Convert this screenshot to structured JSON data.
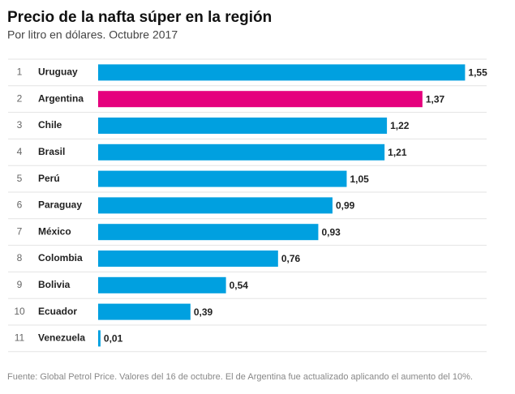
{
  "chart_data": {
    "type": "bar",
    "orientation": "horizontal",
    "title": "Precio de la nafta súper en la región",
    "subtitle": "Por litro en dólares. Octubre 2017",
    "ranks": [
      1,
      2,
      3,
      4,
      5,
      6,
      7,
      8,
      9,
      10,
      11
    ],
    "categories": [
      "Uruguay",
      "Argentina",
      "Chile",
      "Brasil",
      "Perú",
      "Paraguay",
      "México",
      "Colombia",
      "Bolivia",
      "Ecuador",
      "Venezuela"
    ],
    "values": [
      1.55,
      1.37,
      1.22,
      1.21,
      1.05,
      0.99,
      0.93,
      0.76,
      0.54,
      0.39,
      0.01
    ],
    "value_labels": [
      "1,55",
      "1,37",
      "1,22",
      "1,21",
      "1,05",
      "0,99",
      "0,93",
      "0,76",
      "0,54",
      "0,39",
      "0,01"
    ],
    "colors": [
      "#00a0e0",
      "#e5007d",
      "#00a0e0",
      "#00a0e0",
      "#00a0e0",
      "#00a0e0",
      "#00a0e0",
      "#00a0e0",
      "#00a0e0",
      "#00a0e0",
      "#00a0e0"
    ],
    "xlim": [
      0,
      1.6
    ],
    "source": "Fuente: Global Petrol Price. Valores del 16 de octubre. El de Argentina fue actualizado aplicando el aumento del 10%."
  }
}
